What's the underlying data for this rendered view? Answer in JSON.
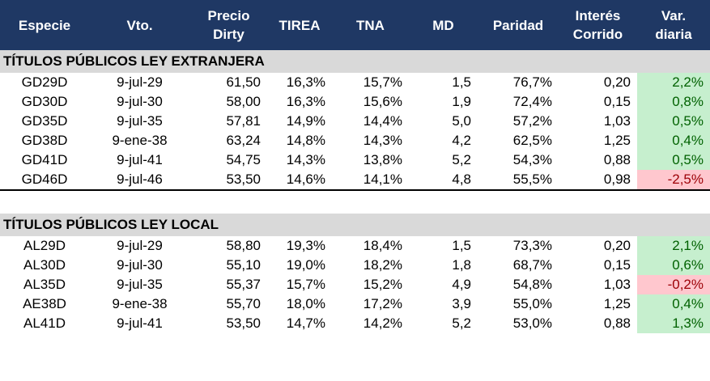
{
  "headers": [
    "Especie",
    "Vto.",
    "Precio\nDirty",
    "TIREA",
    "TNA",
    "MD",
    "Paridad",
    "Interés\nCorrido",
    "Var.\ndiaria"
  ],
  "headers_split": [
    [
      "Especie"
    ],
    [
      "Vto."
    ],
    [
      "Precio",
      "Dirty"
    ],
    [
      "TIREA"
    ],
    [
      "TNA"
    ],
    [
      "MD"
    ],
    [
      "Paridad"
    ],
    [
      "Interés",
      "Corrido"
    ],
    [
      "Var.",
      "diaria"
    ]
  ],
  "colors": {
    "header_bg": "#1F3864",
    "section_bg": "#D9D9D9",
    "pos_bg": "#C6EFCE",
    "pos_text": "#006100",
    "neg_bg": "#FFC7CE",
    "neg_text": "#9C0006"
  },
  "sections": [
    {
      "title": "TÍTULOS PÚBLICOS LEY EXTRANJERA",
      "rows": [
        [
          "GD29D",
          "9-jul-29",
          "61,50",
          "16,3%",
          "15,7%",
          "1,5",
          "76,7%",
          "0,20",
          "2,2%"
        ],
        [
          "GD30D",
          "9-jul-30",
          "58,00",
          "16,3%",
          "15,6%",
          "1,9",
          "72,4%",
          "0,15",
          "0,8%"
        ],
        [
          "GD35D",
          "9-jul-35",
          "57,81",
          "14,9%",
          "14,4%",
          "5,0",
          "57,2%",
          "1,03",
          "0,5%"
        ],
        [
          "GD38D",
          "9-ene-38",
          "63,24",
          "14,8%",
          "14,3%",
          "4,2",
          "62,5%",
          "1,25",
          "0,4%"
        ],
        [
          "GD41D",
          "9-jul-41",
          "54,75",
          "14,3%",
          "13,8%",
          "5,2",
          "54,3%",
          "0,88",
          "0,5%"
        ],
        [
          "GD46D",
          "9-jul-46",
          "53,50",
          "14,6%",
          "14,1%",
          "4,8",
          "55,5%",
          "0,98",
          "-2,5%"
        ]
      ]
    },
    {
      "title": "TÍTULOS PÚBLICOS LEY LOCAL",
      "rows": [
        [
          "AL29D",
          "9-jul-29",
          "58,80",
          "19,3%",
          "18,4%",
          "1,5",
          "73,3%",
          "0,20",
          "2,1%"
        ],
        [
          "AL30D",
          "9-jul-30",
          "55,10",
          "19,0%",
          "18,2%",
          "1,8",
          "68,7%",
          "0,15",
          "0,6%"
        ],
        [
          "AL35D",
          "9-jul-35",
          "55,37",
          "15,7%",
          "15,2%",
          "4,9",
          "54,8%",
          "1,03",
          "-0,2%"
        ],
        [
          "AE38D",
          "9-ene-38",
          "55,70",
          "18,0%",
          "17,2%",
          "3,9",
          "55,0%",
          "1,25",
          "0,4%"
        ],
        [
          "AL41D",
          "9-jul-41",
          "53,50",
          "14,7%",
          "14,2%",
          "5,2",
          "53,0%",
          "0,88",
          "1,3%"
        ]
      ]
    }
  ]
}
